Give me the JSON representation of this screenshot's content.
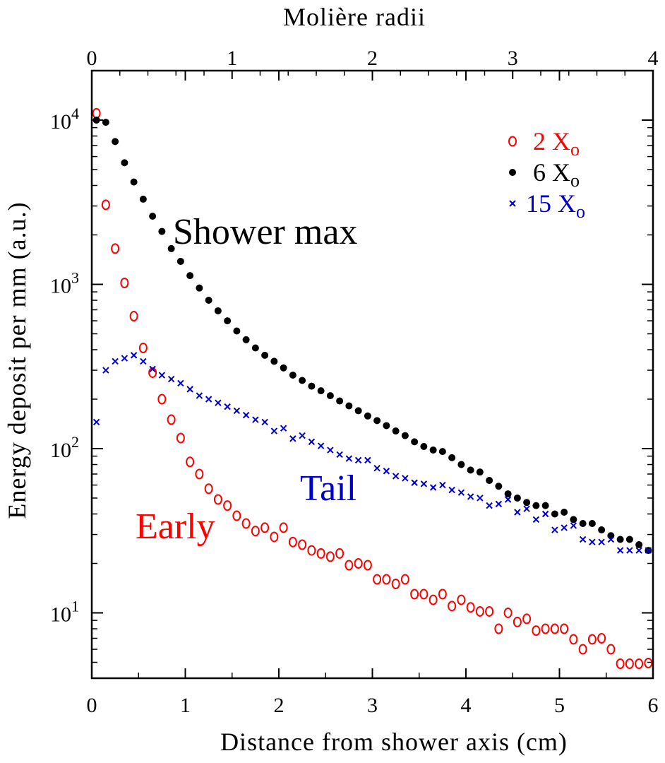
{
  "chart_data": {
    "type": "scatter",
    "xlabel": "Distance  from  shower  axis  (cm)",
    "ylabel": "Energy  deposit  per  mm  (a.u.)",
    "x2label": "Molière radii",
    "xlim": [
      0,
      6
    ],
    "ylim": [
      4,
      20000
    ],
    "x2lim": [
      0,
      4
    ],
    "yscale": "log",
    "xticks": [
      "0",
      "1",
      "2",
      "3",
      "4",
      "5",
      "6"
    ],
    "x2ticks": [
      "0",
      "1",
      "2",
      "3",
      "4"
    ],
    "yticks": [
      {
        "base": "10",
        "exp": "1",
        "value": 10
      },
      {
        "base": "10",
        "exp": "2",
        "value": 100
      },
      {
        "base": "10",
        "exp": "3",
        "value": 1000
      },
      {
        "base": "10",
        "exp": "4",
        "value": 10000
      }
    ],
    "annotations": {
      "shower_max": "Shower max",
      "tail": "Tail",
      "early": "Early"
    },
    "colors": {
      "early": "#ff0000",
      "max": "#000000",
      "tail": "#0000cc"
    },
    "series": [
      {
        "name": "2 X",
        "sub": "o",
        "marker": "open-circle",
        "points": [
          [
            0.05,
            11000
          ],
          [
            0.15,
            3050
          ],
          [
            0.25,
            1650
          ],
          [
            0.35,
            1020
          ],
          [
            0.45,
            640
          ],
          [
            0.55,
            410
          ],
          [
            0.65,
            290
          ],
          [
            0.75,
            200
          ],
          [
            0.85,
            150
          ],
          [
            0.95,
            116
          ],
          [
            1.05,
            83
          ],
          [
            1.15,
            70
          ],
          [
            1.25,
            57
          ],
          [
            1.35,
            49
          ],
          [
            1.45,
            45
          ],
          [
            1.55,
            39
          ],
          [
            1.65,
            35
          ],
          [
            1.75,
            31.5
          ],
          [
            1.85,
            33
          ],
          [
            1.95,
            29
          ],
          [
            2.05,
            33
          ],
          [
            2.15,
            27
          ],
          [
            2.25,
            26
          ],
          [
            2.35,
            24
          ],
          [
            2.45,
            23
          ],
          [
            2.55,
            22
          ],
          [
            2.65,
            23
          ],
          [
            2.75,
            19.5
          ],
          [
            2.85,
            20
          ],
          [
            2.95,
            19.5
          ],
          [
            3.05,
            16
          ],
          [
            3.15,
            16
          ],
          [
            3.25,
            15
          ],
          [
            3.35,
            16
          ],
          [
            3.45,
            13
          ],
          [
            3.55,
            13
          ],
          [
            3.65,
            12
          ],
          [
            3.75,
            13
          ],
          [
            3.85,
            11
          ],
          [
            3.95,
            12
          ],
          [
            4.05,
            10.8
          ],
          [
            4.15,
            10.2
          ],
          [
            4.25,
            10.2
          ],
          [
            4.35,
            8
          ],
          [
            4.45,
            10
          ],
          [
            4.55,
            8.8
          ],
          [
            4.65,
            9.2
          ],
          [
            4.75,
            7.8
          ],
          [
            4.85,
            8
          ],
          [
            4.95,
            8
          ],
          [
            5.05,
            8
          ],
          [
            5.15,
            6.9
          ],
          [
            5.25,
            6
          ],
          [
            5.35,
            6.9
          ],
          [
            5.45,
            7
          ],
          [
            5.55,
            6
          ],
          [
            5.65,
            4.9
          ],
          [
            5.75,
            4.9
          ],
          [
            5.85,
            4.9
          ],
          [
            5.95,
            4.95
          ]
        ]
      },
      {
        "name": "6 X",
        "sub": "o",
        "marker": "filled-circle",
        "points": [
          [
            0.05,
            10000
          ],
          [
            0.15,
            9700
          ],
          [
            0.25,
            7400
          ],
          [
            0.35,
            5500
          ],
          [
            0.45,
            4200
          ],
          [
            0.55,
            3300
          ],
          [
            0.65,
            2600
          ],
          [
            0.75,
            2100
          ],
          [
            0.85,
            1650
          ],
          [
            0.95,
            1380
          ],
          [
            1.05,
            1130
          ],
          [
            1.15,
            950
          ],
          [
            1.25,
            800
          ],
          [
            1.35,
            690
          ],
          [
            1.45,
            600
          ],
          [
            1.55,
            520
          ],
          [
            1.65,
            460
          ],
          [
            1.75,
            410
          ],
          [
            1.85,
            370
          ],
          [
            1.95,
            340
          ],
          [
            2.05,
            310
          ],
          [
            2.15,
            280
          ],
          [
            2.25,
            260
          ],
          [
            2.35,
            240
          ],
          [
            2.45,
            225
          ],
          [
            2.55,
            210
          ],
          [
            2.65,
            195
          ],
          [
            2.75,
            182
          ],
          [
            2.85,
            170
          ],
          [
            2.95,
            158
          ],
          [
            3.05,
            148
          ],
          [
            3.15,
            138
          ],
          [
            3.25,
            128
          ],
          [
            3.35,
            120
          ],
          [
            3.45,
            110
          ],
          [
            3.55,
            103
          ],
          [
            3.65,
            98
          ],
          [
            3.75,
            96
          ],
          [
            3.85,
            88
          ],
          [
            3.95,
            80
          ],
          [
            4.05,
            74
          ],
          [
            4.15,
            72
          ],
          [
            4.25,
            64
          ],
          [
            4.35,
            59
          ],
          [
            4.45,
            53
          ],
          [
            4.55,
            50
          ],
          [
            4.65,
            47
          ],
          [
            4.75,
            45
          ],
          [
            4.85,
            45
          ],
          [
            4.95,
            40
          ],
          [
            5.05,
            41
          ],
          [
            5.15,
            37
          ],
          [
            5.25,
            35
          ],
          [
            5.35,
            35
          ],
          [
            5.45,
            32
          ],
          [
            5.55,
            29.5
          ],
          [
            5.65,
            28
          ],
          [
            5.75,
            28
          ],
          [
            5.85,
            26
          ],
          [
            5.95,
            24
          ]
        ]
      },
      {
        "name": "15 X",
        "sub": "o",
        "marker": "cross",
        "points": [
          [
            0.05,
            145
          ],
          [
            0.15,
            300
          ],
          [
            0.25,
            340
          ],
          [
            0.35,
            355
          ],
          [
            0.45,
            370
          ],
          [
            0.55,
            340
          ],
          [
            0.65,
            305
          ],
          [
            0.75,
            280
          ],
          [
            0.85,
            265
          ],
          [
            0.95,
            250
          ],
          [
            1.05,
            230
          ],
          [
            1.15,
            210
          ],
          [
            1.25,
            200
          ],
          [
            1.35,
            190
          ],
          [
            1.45,
            180
          ],
          [
            1.55,
            170
          ],
          [
            1.65,
            160
          ],
          [
            1.75,
            150
          ],
          [
            1.85,
            145
          ],
          [
            1.95,
            128
          ],
          [
            2.05,
            133
          ],
          [
            2.15,
            115
          ],
          [
            2.25,
            120
          ],
          [
            2.35,
            110
          ],
          [
            2.45,
            104
          ],
          [
            2.55,
            98
          ],
          [
            2.65,
            92
          ],
          [
            2.75,
            87
          ],
          [
            2.85,
            85
          ],
          [
            2.95,
            85
          ],
          [
            3.05,
            76
          ],
          [
            3.15,
            73
          ],
          [
            3.25,
            68
          ],
          [
            3.35,
            66
          ],
          [
            3.45,
            62
          ],
          [
            3.55,
            61
          ],
          [
            3.65,
            58
          ],
          [
            3.75,
            60
          ],
          [
            3.85,
            56
          ],
          [
            3.95,
            54
          ],
          [
            4.05,
            51
          ],
          [
            4.15,
            50
          ],
          [
            4.25,
            45
          ],
          [
            4.35,
            46
          ],
          [
            4.45,
            49
          ],
          [
            4.55,
            41
          ],
          [
            4.65,
            43
          ],
          [
            4.75,
            37
          ],
          [
            4.85,
            40
          ],
          [
            4.95,
            32
          ],
          [
            5.05,
            33
          ],
          [
            5.15,
            34
          ],
          [
            5.25,
            28
          ],
          [
            5.35,
            27
          ],
          [
            5.45,
            27
          ],
          [
            5.55,
            28
          ],
          [
            5.65,
            24
          ],
          [
            5.75,
            24
          ],
          [
            5.85,
            24
          ],
          [
            5.95,
            24
          ]
        ]
      }
    ]
  }
}
